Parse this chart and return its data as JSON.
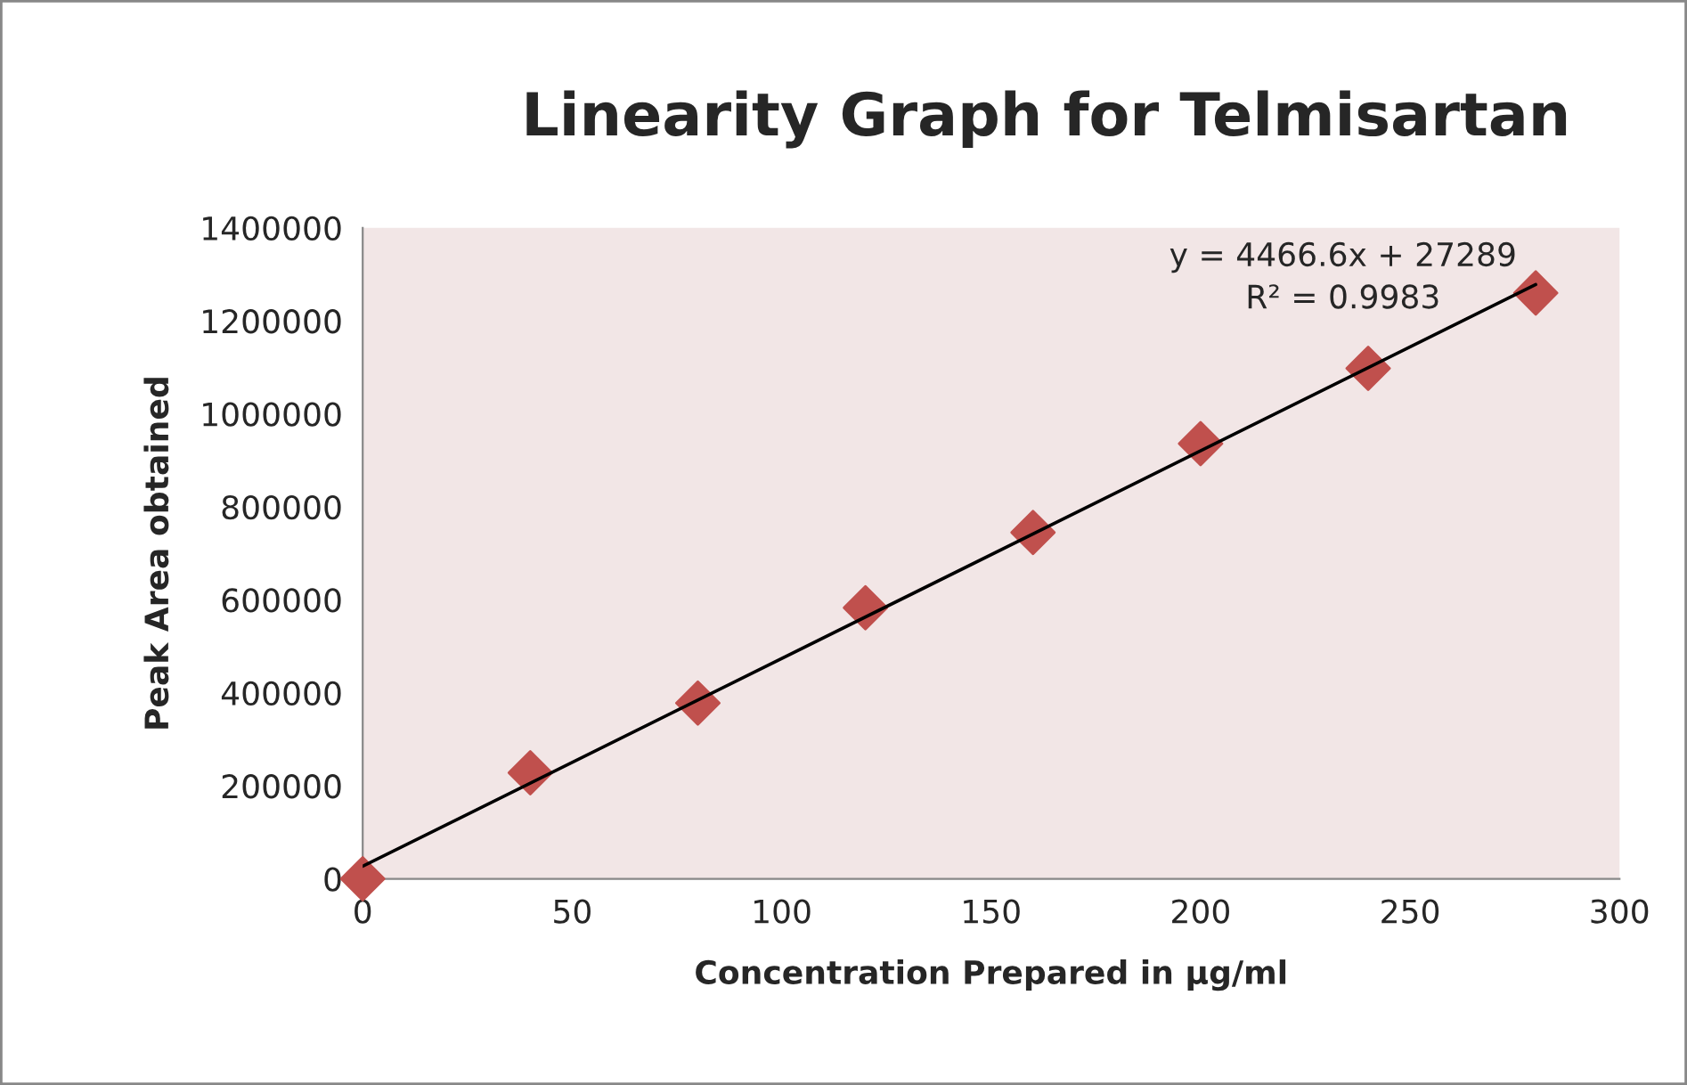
{
  "chart_data": {
    "type": "scatter",
    "title": "Linearity Graph for Telmisartan",
    "xlabel": "Concentration Prepared in µg/ml",
    "ylabel": "Peak Area obtained",
    "x": [
      0,
      40,
      80,
      120,
      160,
      200,
      240,
      280
    ],
    "series": [
      {
        "color": "#c0504d",
        "marker": "diamond",
        "values": [
          0,
          228000,
          378000,
          583000,
          745000,
          936000,
          1098000,
          1260000
        ]
      },
      {
        "type": "line",
        "color": "#000000",
        "marker": "none",
        "line_style": "solid",
        "x": [
          0,
          280
        ],
        "values": [
          27000,
          1278000
        ]
      }
    ],
    "annotations": [
      "y = 4466.6x + 27289",
      "R² = 0.9983"
    ],
    "xlim": [
      0,
      300
    ],
    "xticks": [
      0,
      50,
      100,
      150,
      200,
      250,
      300
    ],
    "ylim": [
      0,
      1400000
    ],
    "yticks": [
      0,
      200000,
      400000,
      600000,
      800000,
      1000000,
      1200000,
      1400000
    ],
    "grid": false,
    "legend": false
  }
}
